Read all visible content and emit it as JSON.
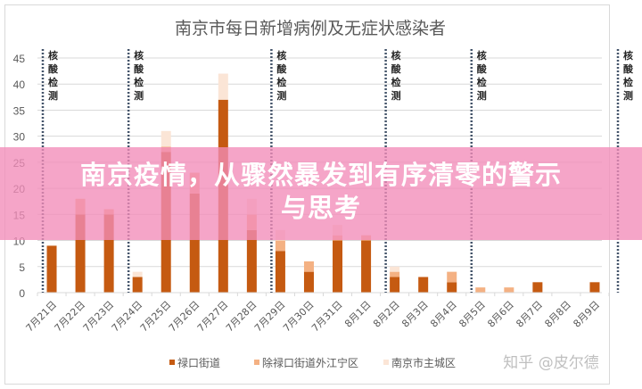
{
  "chart_data": {
    "type": "bar",
    "stacked": true,
    "title": "南京市每日新增病例及无症状感染者",
    "xlabel": "",
    "ylabel": "",
    "ylim": [
      0,
      45
    ],
    "yticks": [
      "0",
      "5",
      "10",
      "15",
      "20",
      "25",
      "30",
      "35",
      "40",
      "45"
    ],
    "grid": true,
    "legend_position": "bottom",
    "categories": [
      "7月21日",
      "7月22日",
      "7月23日",
      "7月24日",
      "7月25日",
      "7月26日",
      "7月27日",
      "7月28日",
      "7月29日",
      "7月30日",
      "7月31日",
      "8月1日",
      "8月2日",
      "8月3日",
      "8月4日",
      "8月5日",
      "8月6日",
      "8月7日",
      "8月8日",
      "8月9日"
    ],
    "series": [
      {
        "name": "禄口街道",
        "color": "#c55a11",
        "values": [
          9,
          15,
          15,
          3,
          27,
          19,
          37,
          12,
          8,
          4,
          10,
          10,
          3,
          3,
          2,
          0,
          0,
          2,
          0,
          2
        ]
      },
      {
        "name": "除禄口街道外江宁区",
        "color": "#f4b183",
        "values": [
          0,
          3,
          1,
          0,
          1,
          4,
          0,
          3,
          2,
          2,
          1,
          1,
          1,
          0,
          2,
          1,
          1,
          0,
          0,
          0
        ]
      },
      {
        "name": "南京市主城区",
        "color": "#fbe5d6",
        "values": [
          0,
          0,
          0,
          1,
          3,
          0,
          5,
          3,
          2,
          0,
          2,
          0,
          1,
          0,
          0,
          0,
          0,
          0,
          0,
          0
        ]
      }
    ],
    "annotations": {
      "label": [
        "核",
        "酸",
        "检",
        "测"
      ],
      "line_color": "#44546a",
      "before_categories": [
        "7月21日",
        "7月24日",
        "7月29日",
        "8月2日",
        "8月5日"
      ],
      "after_last": true
    }
  },
  "overlay": {
    "headline_line1": "南京疫情，从骤然暴发到有序清零的警示",
    "headline_line2": "与思考"
  },
  "watermark": "知乎 @皮尔德"
}
